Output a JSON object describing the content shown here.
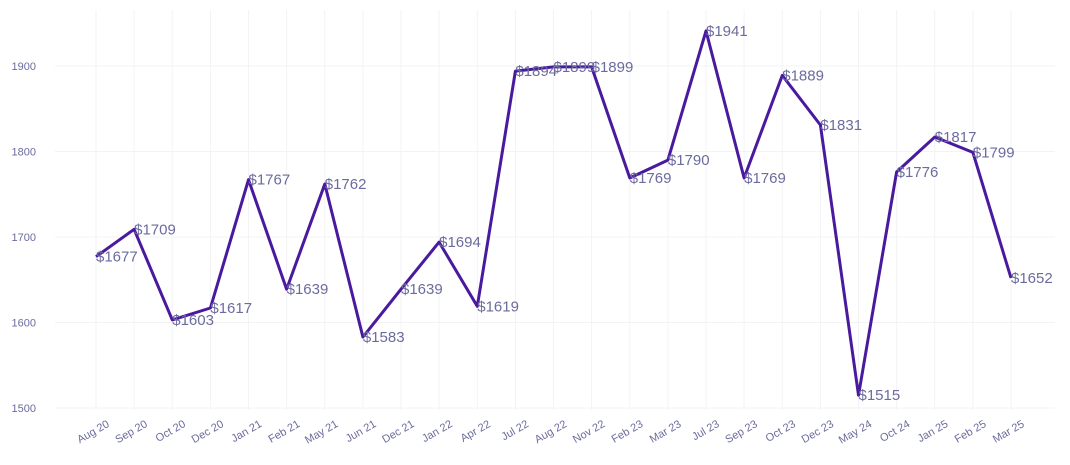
{
  "chart_data": {
    "type": "line",
    "title": "",
    "xlabel": "",
    "ylabel": "",
    "ylim": [
      1500,
      1960
    ],
    "yticks": [
      1500,
      1600,
      1700,
      1800,
      1900
    ],
    "grid": true,
    "colors": {
      "line": "#4a1a9e",
      "labels": "#6b6b9e",
      "grid": "#f3f3f6"
    },
    "label_prefix": "$",
    "x": [
      "Aug 20",
      "Sep 20",
      "Oct 20",
      "Dec 20",
      "Jan 21",
      "Feb 21",
      "May 21",
      "Jun 21",
      "Dec 21",
      "Jan 22",
      "Apr 22",
      "Jul 22",
      "Aug 22",
      "Nov 22",
      "Feb 23",
      "Mar 23",
      "Jul 23",
      "Sep 23",
      "Oct 23",
      "Dec 23",
      "May 24",
      "Oct 24",
      "Jan 25",
      "Feb 25",
      "Mar 25"
    ],
    "series": [
      {
        "values": [
          1677,
          1709,
          1603,
          1617,
          1767,
          1639,
          1762,
          1583,
          1639,
          1694,
          1619,
          1894,
          1899,
          1899,
          1769,
          1790,
          1941,
          1769,
          1889,
          1831,
          1515,
          1776,
          1817,
          1799,
          1652
        ]
      }
    ]
  }
}
